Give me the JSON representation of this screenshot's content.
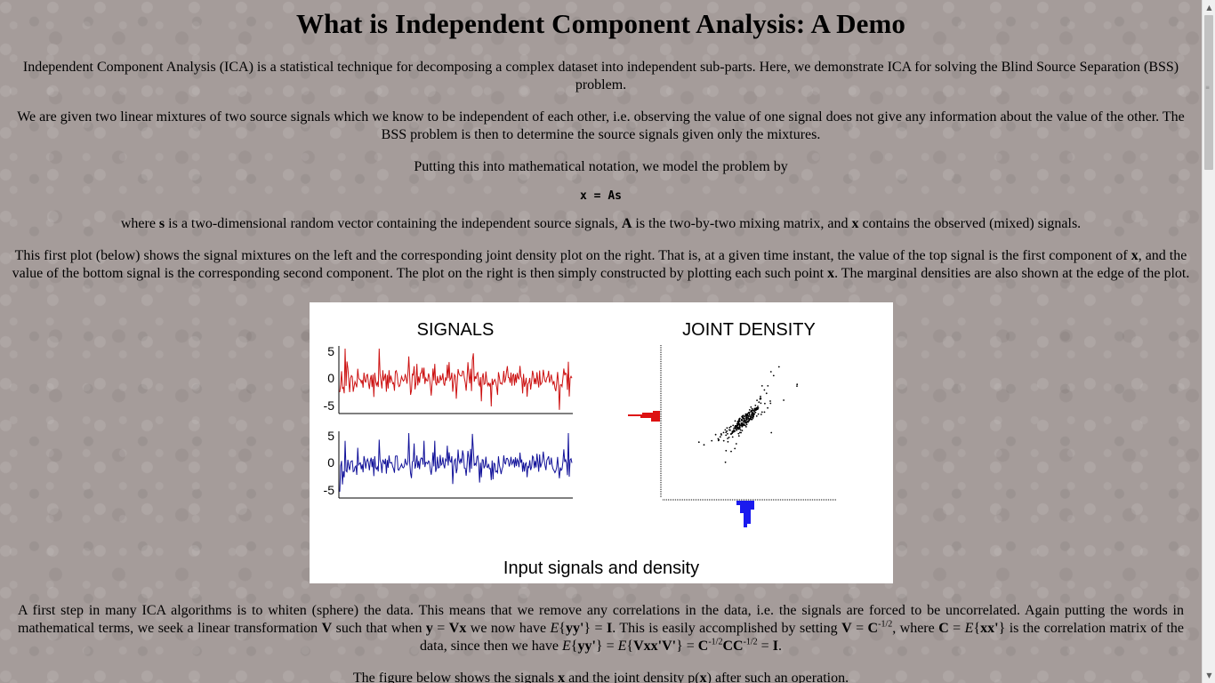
{
  "title": "What is Independent Component Analysis: A Demo",
  "para1": "Independent Component Analysis (ICA) is a statistical technique for decomposing a complex dataset into independent sub-parts. Here, we demonstrate ICA for solving the Blind Source Separation (BSS) problem.",
  "para2": "We are given two linear mixtures of two source signals which we know to be independent of each other, i.e. observing the value of one signal does not give any information about the value of the other. The BSS problem is then to determine the source signals given only the mixtures.",
  "para3": "Putting this into mathematical notation, we model the problem by",
  "equation": "x = As",
  "para4": {
    "t1": "where ",
    "b1": "s",
    "t2": " is a two-dimensional random vector containing the independent source signals, ",
    "b2": "A",
    "t3": " is the two-by-two mixing matrix, and ",
    "b3": "x",
    "t4": " contains the observed (mixed) signals."
  },
  "para5": {
    "t1": "This first plot (below) shows the signal mixtures on the left and the corresponding joint density plot on the right. That is, at a given time instant, the value of the top signal is the first component of ",
    "b1": "x",
    "t2": ", and the value of the bottom signal is the corresponding second component. The plot on the right is then simply constructed by plotting each such point ",
    "b2": "x",
    "t3": ". The marginal densities are also shown at the edge of the plot."
  },
  "figure": {
    "signals_title": "SIGNALS",
    "density_title": "JOINT DENSITY",
    "caption": "Input signals and density",
    "ticks": [
      "5",
      "0",
      "-5"
    ],
    "colors": {
      "top_signal": "#cc1111",
      "bottom_signal": "#111199",
      "left_marginal": "#dd1111",
      "bottom_marginal": "#1a1aee"
    }
  },
  "para6": {
    "t1": "A first step in many ICA algorithms is to whiten (sphere) the data. This means that we remove any correlations in the data, i.e. the signals are forced to be uncorrelated. Again putting the words in mathematical terms, we seek a linear transformation ",
    "b1": "V",
    "t2": " such that when ",
    "b2": "y",
    "t3": " = ",
    "b3": "Vx",
    "t4": " we now have ",
    "i1": "E",
    "t5": "{",
    "b4": "yy'",
    "t6": "} = ",
    "b5": "I",
    "t7": ". This is easily accomplished by setting ",
    "b6": "V",
    "t8": " = ",
    "b7": "C",
    "s1": "-1/2",
    "t9": ", where ",
    "b8": "C",
    "t10": " = ",
    "i2": "E",
    "t11": "{",
    "b9": "xx'",
    "t12": "} is the correlation matrix of the data, since then we have ",
    "i3": "E",
    "t13": "{",
    "b10": "yy'",
    "t14": "} = ",
    "i4": "E",
    "t15": "{",
    "b11": "Vxx'V'",
    "t16": "} = ",
    "b12": "C",
    "s2": "-1/2",
    "b13": "CC",
    "s3": "-1/2",
    "t17": " = ",
    "b14": "I",
    "t18": "."
  },
  "para7": {
    "t1": "The figure below shows the signals ",
    "b1": "x",
    "t2": " and the joint density p(",
    "b2": "x",
    "t3": ") after such an operation."
  }
}
